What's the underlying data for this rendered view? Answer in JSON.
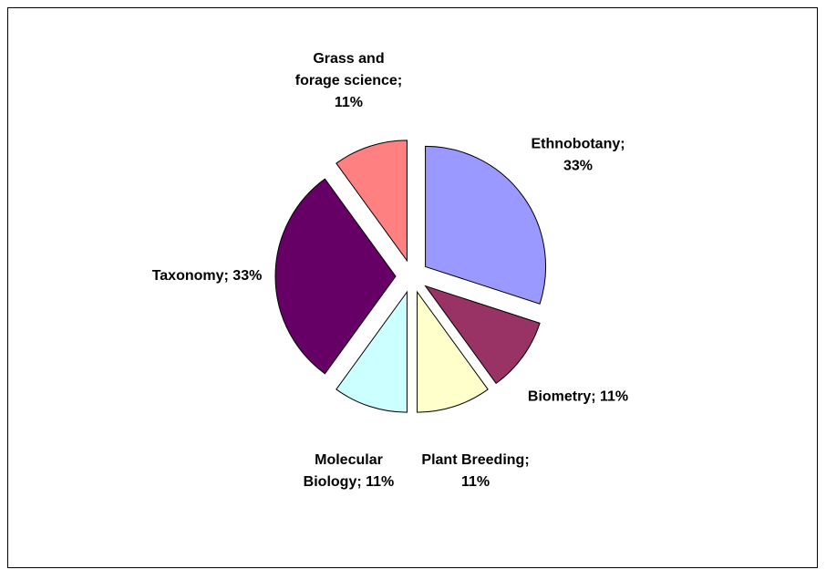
{
  "chart_data": {
    "type": "pie",
    "values": [
      33,
      11,
      11,
      11,
      33,
      11
    ],
    "value_labels": [
      "Ethnobotany; 33%",
      "Biometry; 11%",
      "Plant Breeding; 11%",
      "Molecular Biology; 11%",
      "Taxonomy; 33%",
      "Grass and forage science; 11%"
    ],
    "colors": [
      "#9999ff",
      "#993366",
      "#ffffcc",
      "#ccffff",
      "#660066",
      "#ff8080"
    ],
    "exploded": true
  }
}
